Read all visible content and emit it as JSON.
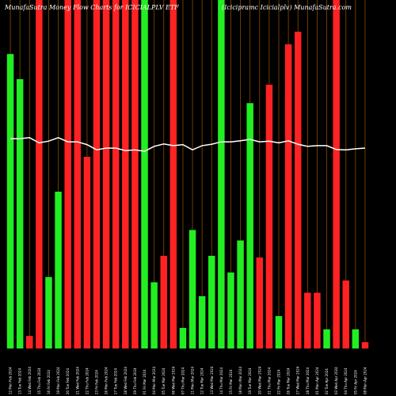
{
  "chart_data": {
    "type": "bar",
    "title": "MunafaSutra Money Flow Charts for ICICIALPLV ETF",
    "subtitle": "(Icicipramc Icicialplv) MunafaSutra.com",
    "categories": [
      "12 Mon Feb 2024",
      "13 Tue Feb 2024",
      "14 Wed Feb 2024",
      "15 Thu Feb 2024",
      "16 Fri Feb 2024",
      "19 Mon Feb 2024",
      "20 Tue Feb 2024",
      "21 Wed Feb 2024",
      "22 Thu Feb 2024",
      "23 Fri Feb 2024",
      "26 Mon Feb 2024",
      "27 Tue Feb 2024",
      "28 Wed Feb 2024",
      "29 Thu Feb 2024",
      "01 Fri Mar 2024",
      "04 Mon Mar 2024",
      "05 Tue Mar 2024",
      "06 Wed Mar 2024",
      "07 Thu Mar 2024",
      "11 Mon Mar 2024",
      "12 Tue Mar 2024",
      "13 Wed Mar 2024",
      "14 Thu Mar 2024",
      "15 Fri Mar 2024",
      "18 Mon Mar 2024",
      "19 Tue Mar 2024",
      "20 Wed Mar 2024",
      "21 Thu Mar 2024",
      "22 Fri Mar 2024",
      "26 Tue Mar 2024",
      "27 Wed Mar 2024",
      "28 Thu Mar 2024",
      "01 Mon Apr 2024",
      "02 Tue Apr 2024",
      "03 Wed Apr 2024",
      "04 Thu Apr 2024",
      "05 Fri Apr 2024",
      "08 Mon Apr 2024"
    ],
    "values": [
      84.5,
      77.3,
      3.6,
      100,
      20.5,
      45,
      100,
      100,
      55,
      100,
      100,
      100,
      100,
      100,
      100,
      19,
      26.6,
      100,
      5.9,
      34,
      15,
      26.6,
      100,
      21.8,
      31,
      70.4,
      26.1,
      75.7,
      9.3,
      87.3,
      90.9,
      16,
      16,
      5.5,
      100,
      19.5,
      5.5,
      1.8
    ],
    "colors": [
      "#22ee22",
      "#22ee22",
      "#ff2222",
      "#ff2222",
      "#22ee22",
      "#22ee22",
      "#ff2222",
      "#ff2222",
      "#ff2222",
      "#ff2222",
      "#ff2222",
      "#ff2222",
      "#ff2222",
      "#ff2222",
      "#22ee22",
      "#22ee22",
      "#ff2222",
      "#ff2222",
      "#22ee22",
      "#22ee22",
      "#22ee22",
      "#22ee22",
      "#22ee22",
      "#22ee22",
      "#22ee22",
      "#22ee22",
      "#ff2222",
      "#ff2222",
      "#22ee22",
      "#ff2222",
      "#ff2222",
      "#ff2222",
      "#ff2222",
      "#22ee22",
      "#ff2222",
      "#ff2222",
      "#22ee22",
      "#ff2222"
    ],
    "line_values": [
      60.2,
      60.2,
      60.5,
      59,
      59.5,
      60.5,
      59.3,
      59.3,
      58.5,
      57,
      57.5,
      57.5,
      56.8,
      57,
      56.6,
      58,
      58.7,
      58.2,
      58.5,
      57,
      58.2,
      58.6,
      59.3,
      59.3,
      59.6,
      60,
      59.3,
      59.5,
      59,
      59.6,
      58.6,
      58,
      58.2,
      58.2,
      57.1,
      57,
      57.3,
      57.5
    ],
    "line_color": "#ffffff",
    "ylim": [
      0,
      100
    ]
  }
}
